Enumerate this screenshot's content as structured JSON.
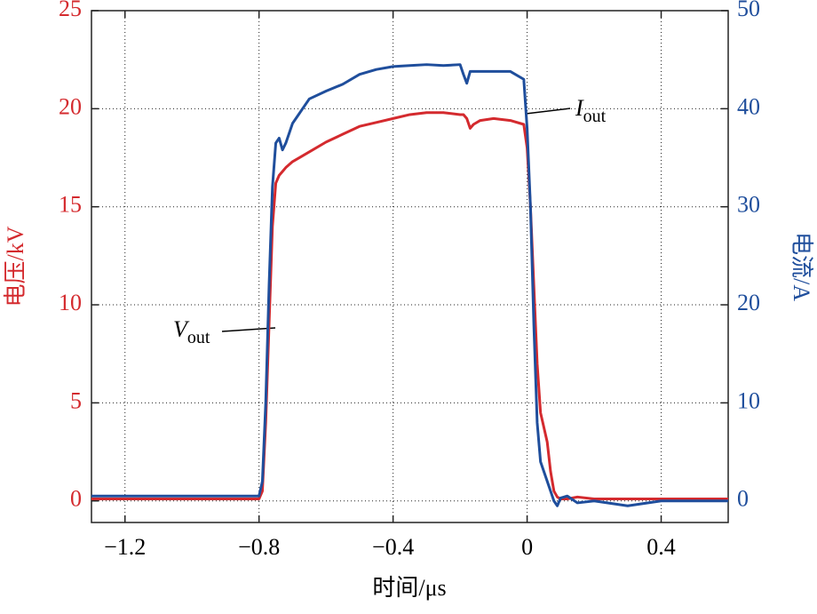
{
  "chart_data": {
    "type": "line",
    "xlabel": "时间/μs",
    "ylabel": "电压/kV",
    "y2label": "电流/A",
    "x": [
      -1.3,
      -0.8,
      -0.79,
      -0.78,
      -0.77,
      -0.76,
      -0.75,
      -0.74,
      -0.73,
      -0.72,
      -0.7,
      -0.68,
      -0.65,
      -0.6,
      -0.55,
      -0.5,
      -0.45,
      -0.4,
      -0.35,
      -0.3,
      -0.25,
      -0.2,
      -0.19,
      -0.18,
      -0.17,
      -0.16,
      -0.14,
      -0.1,
      -0.05,
      -0.01,
      0,
      0.01,
      0.02,
      0.03,
      0.04,
      0.06,
      0.07,
      0.08,
      0.09,
      0.1,
      0.12,
      0.15,
      0.2,
      0.3,
      0.4,
      0.5,
      0.6
    ],
    "series": [
      {
        "color": "#d42a2e",
        "axis": "y",
        "values": [
          0.1,
          0.1,
          0.5,
          4,
          9,
          14,
          16.2,
          16.6,
          16.8,
          17.0,
          17.3,
          17.5,
          17.8,
          18.3,
          18.7,
          19.1,
          19.3,
          19.5,
          19.7,
          19.8,
          19.8,
          19.7,
          19.7,
          19.5,
          19.0,
          19.2,
          19.4,
          19.5,
          19.4,
          19.2,
          18,
          15,
          11,
          7,
          4.5,
          3,
          1.5,
          0.5,
          0.2,
          0.1,
          0.1,
          0.2,
          0.1,
          0.1,
          0.1,
          0.1,
          0.1
        ]
      },
      {
        "color": "#1f4e9c",
        "axis": "y2",
        "values": [
          0.5,
          0.5,
          2,
          10,
          22,
          32,
          36.5,
          37,
          35.8,
          36.5,
          38.5,
          39.5,
          41,
          41.8,
          42.5,
          43.5,
          44,
          44.3,
          44.4,
          44.5,
          44.4,
          44.5,
          43.5,
          42.6,
          43.8,
          43.8,
          43.8,
          43.8,
          43.8,
          43,
          38,
          30,
          18,
          8,
          4,
          2,
          1,
          0,
          -0.5,
          0.3,
          0.5,
          -0.2,
          0,
          -0.5,
          0,
          0,
          0
        ]
      }
    ],
    "annotations": [
      {
        "symbol": "V",
        "subscript": "out"
      },
      {
        "symbol": "I",
        "subscript": "out"
      }
    ],
    "xlim": [
      -1.3,
      0.6
    ],
    "xticks": [
      {
        "value": -1.2,
        "label": "−1.2"
      },
      {
        "value": -0.8,
        "label": "−0.8"
      },
      {
        "value": -0.4,
        "label": "−0.4"
      },
      0,
      0.4
    ],
    "ylim": [
      -1.1,
      25
    ],
    "yticks": [
      0,
      5,
      10,
      15,
      20,
      25
    ],
    "y2lim": [
      -2.2,
      50
    ],
    "y2ticks": [
      0,
      10,
      20,
      30,
      40,
      50
    ],
    "grid": true
  }
}
